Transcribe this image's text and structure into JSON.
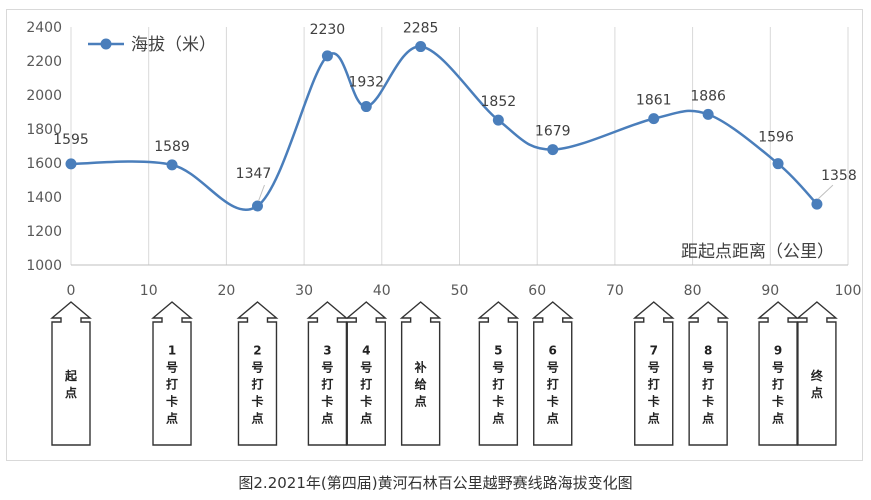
{
  "chart_data": {
    "type": "line",
    "caption": "图2.2021年(第四届)黄河石林百公里越野赛线路海拔变化图",
    "xlabel": "距起点距离（公里）",
    "xlim": [
      0,
      100
    ],
    "x_ticks": [
      0,
      10,
      20,
      30,
      40,
      50,
      60,
      70,
      80,
      90,
      100
    ],
    "ylim": [
      1000,
      2400
    ],
    "y_ticks": [
      1000,
      1200,
      1400,
      1600,
      1800,
      2000,
      2200,
      2400
    ],
    "grid": "vertical",
    "legend_position": "top-left",
    "series": [
      {
        "name": "海拔（米）",
        "color": "#4a7ebb",
        "x": [
          0,
          13,
          24,
          33,
          38,
          45,
          55,
          62,
          75,
          82,
          91,
          96
        ],
        "values": [
          1595,
          1589,
          1347,
          2230,
          1932,
          2285,
          1852,
          1679,
          1861,
          1886,
          1596,
          1358
        ]
      }
    ],
    "checkpoints": [
      {
        "x": 0,
        "label": "起点"
      },
      {
        "x": 13,
        "label": "1号打卡点"
      },
      {
        "x": 24,
        "label": "2号打卡点"
      },
      {
        "x": 33,
        "label": "3号打卡点"
      },
      {
        "x": 38,
        "label": "4号打卡点"
      },
      {
        "x": 45,
        "label": "补给点"
      },
      {
        "x": 55,
        "label": "5号打卡点"
      },
      {
        "x": 62,
        "label": "6号打卡点"
      },
      {
        "x": 75,
        "label": "7号打卡点"
      },
      {
        "x": 82,
        "label": "8号打卡点"
      },
      {
        "x": 91,
        "label": "9号打卡点"
      },
      {
        "x": 96,
        "label": "终点"
      }
    ]
  }
}
